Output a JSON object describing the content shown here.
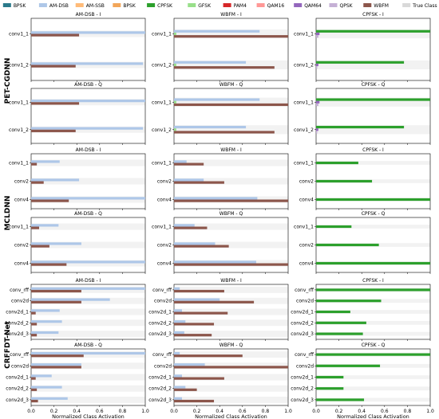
{
  "chart_data": {
    "type": "bar",
    "orientation": "horizontal",
    "xlabel": "Normalized Class Activation",
    "xlim": [
      0,
      1
    ],
    "xticks": [
      "0.0",
      "0.2",
      "0.4",
      "0.6",
      "0.8",
      "1.0"
    ],
    "legend_position": "top",
    "legend": [
      {
        "name": "BPSK",
        "color": "#2b7a8b"
      },
      {
        "name": "AM-DSB",
        "color": "#aec7e8"
      },
      {
        "name": "AM-SSB",
        "color": "#ffbb78"
      },
      {
        "name": "BPSK",
        "color": "#f2a65a"
      },
      {
        "name": "CPFSK",
        "color": "#2ca02c"
      },
      {
        "name": "GFSK",
        "color": "#98df8a"
      },
      {
        "name": "PAM4",
        "color": "#d62728"
      },
      {
        "name": "QAM16",
        "color": "#ff9896"
      },
      {
        "name": "QAM64",
        "color": "#9467bd"
      },
      {
        "name": "QPSK",
        "color": "#c5b0d5"
      },
      {
        "name": "WBFM",
        "color": "#8c564b"
      },
      {
        "name": "True Class",
        "color": "#d9d9d9"
      }
    ],
    "models": [
      {
        "name": "PET-CGDNN",
        "rows": [
          {
            "layers": [
              "conv1_1",
              "conv1_2"
            ],
            "panels": [
              {
                "title": "AM-DSB - I",
                "bars": [
                  [
                    {
                      "c": 1,
                      "v": 1.0
                    },
                    {
                      "c": 10,
                      "v": 0.42
                    }
                  ],
                  [
                    {
                      "c": 1,
                      "v": 0.98
                    },
                    {
                      "c": 10,
                      "v": 0.39
                    }
                  ]
                ]
              },
              {
                "title": "WBFM - I",
                "bars": [
                  [
                    {
                      "c": 1,
                      "v": 0.75
                    },
                    {
                      "c": 5,
                      "v": 0.02
                    },
                    {
                      "c": 10,
                      "v": 1.0
                    }
                  ],
                  [
                    {
                      "c": 1,
                      "v": 0.63
                    },
                    {
                      "c": 5,
                      "v": 0.02
                    },
                    {
                      "c": 10,
                      "v": 0.88
                    }
                  ]
                ]
              },
              {
                "title": "CPFSK - I",
                "bars": [
                  [
                    {
                      "c": 4,
                      "v": 1.0
                    },
                    {
                      "c": 8,
                      "v": 0.03
                    },
                    {
                      "c": 9,
                      "v": 0.02
                    }
                  ],
                  [
                    {
                      "c": 4,
                      "v": 0.77
                    },
                    {
                      "c": 8,
                      "v": 0.02
                    },
                    {
                      "c": 9,
                      "v": 0.01
                    }
                  ]
                ]
              }
            ]
          },
          {
            "layers": [
              "conv1_1",
              "conv1_2"
            ],
            "panels": [
              {
                "title": "AM-DSB - Q",
                "bars": [
                  [
                    {
                      "c": 1,
                      "v": 1.0
                    },
                    {
                      "c": 10,
                      "v": 0.42
                    }
                  ],
                  [
                    {
                      "c": 1,
                      "v": 0.98
                    },
                    {
                      "c": 10,
                      "v": 0.39
                    }
                  ]
                ]
              },
              {
                "title": "WBFM - Q",
                "bars": [
                  [
                    {
                      "c": 1,
                      "v": 0.75
                    },
                    {
                      "c": 5,
                      "v": 0.02
                    },
                    {
                      "c": 10,
                      "v": 1.0
                    }
                  ],
                  [
                    {
                      "c": 1,
                      "v": 0.63
                    },
                    {
                      "c": 5,
                      "v": 0.02
                    },
                    {
                      "c": 10,
                      "v": 0.88
                    }
                  ]
                ]
              },
              {
                "title": "CPFSK - Q",
                "bars": [
                  [
                    {
                      "c": 4,
                      "v": 1.0
                    },
                    {
                      "c": 8,
                      "v": 0.03
                    },
                    {
                      "c": 9,
                      "v": 0.02
                    }
                  ],
                  [
                    {
                      "c": 4,
                      "v": 0.77
                    },
                    {
                      "c": 8,
                      "v": 0.02
                    },
                    {
                      "c": 9,
                      "v": 0.01
                    }
                  ]
                ]
              }
            ]
          }
        ]
      },
      {
        "name": "MCLDNN",
        "rows": [
          {
            "layers": [
              "conv1_1",
              "conv2",
              "conv4"
            ],
            "panels": [
              {
                "title": "AM-DSB - I",
                "bars": [
                  [
                    {
                      "c": 1,
                      "v": 0.25
                    },
                    {
                      "c": 10,
                      "v": 0.05
                    }
                  ],
                  [
                    {
                      "c": 1,
                      "v": 0.42
                    },
                    {
                      "c": 10,
                      "v": 0.11
                    }
                  ],
                  [
                    {
                      "c": 1,
                      "v": 1.0
                    },
                    {
                      "c": 10,
                      "v": 0.33
                    }
                  ]
                ]
              },
              {
                "title": "WBFM - I",
                "bars": [
                  [
                    {
                      "c": 1,
                      "v": 0.11
                    },
                    {
                      "c": 10,
                      "v": 0.26
                    }
                  ],
                  [
                    {
                      "c": 1,
                      "v": 0.26
                    },
                    {
                      "c": 10,
                      "v": 0.44
                    }
                  ],
                  [
                    {
                      "c": 1,
                      "v": 0.73
                    },
                    {
                      "c": 10,
                      "v": 1.0
                    }
                  ]
                ]
              },
              {
                "title": "CPFSK - I",
                "bars": [
                  [
                    {
                      "c": 4,
                      "v": 0.37
                    }
                  ],
                  [
                    {
                      "c": 4,
                      "v": 0.49
                    }
                  ],
                  [
                    {
                      "c": 4,
                      "v": 1.0
                    }
                  ]
                ]
              }
            ]
          },
          {
            "layers": [
              "conv1_1",
              "conv2",
              "conv4"
            ],
            "panels": [
              {
                "title": "AM-DSB - Q",
                "bars": [
                  [
                    {
                      "c": 1,
                      "v": 0.24
                    },
                    {
                      "c": 10,
                      "v": 0.07
                    }
                  ],
                  [
                    {
                      "c": 1,
                      "v": 0.44
                    },
                    {
                      "c": 10,
                      "v": 0.16
                    }
                  ],
                  [
                    {
                      "c": 1,
                      "v": 1.0
                    },
                    {
                      "c": 10,
                      "v": 0.31
                    }
                  ]
                ]
              },
              {
                "title": "WBFM - Q",
                "bars": [
                  [
                    {
                      "c": 1,
                      "v": 0.18
                    },
                    {
                      "c": 10,
                      "v": 0.29
                    }
                  ],
                  [
                    {
                      "c": 1,
                      "v": 0.36
                    },
                    {
                      "c": 10,
                      "v": 0.48
                    }
                  ],
                  [
                    {
                      "c": 1,
                      "v": 0.72
                    },
                    {
                      "c": 10,
                      "v": 1.0
                    }
                  ]
                ]
              },
              {
                "title": "CPFSK - Q",
                "bars": [
                  [
                    {
                      "c": 4,
                      "v": 0.31
                    }
                  ],
                  [
                    {
                      "c": 4,
                      "v": 0.55
                    }
                  ],
                  [
                    {
                      "c": 4,
                      "v": 1.0
                    }
                  ]
                ]
              }
            ]
          }
        ]
      },
      {
        "name": "CRFFDT-Net",
        "rows": [
          {
            "layers": [
              "conv_rff",
              "conv2d",
              "conv2d_1",
              "conv2d_2",
              "conv2d_3"
            ],
            "panels": [
              {
                "title": "AM-DSB - I",
                "bars": [
                  [
                    {
                      "c": 1,
                      "v": 1.0
                    },
                    {
                      "c": 10,
                      "v": 0.44
                    }
                  ],
                  [
                    {
                      "c": 1,
                      "v": 0.69
                    },
                    {
                      "c": 10,
                      "v": 0.44
                    }
                  ],
                  [
                    {
                      "c": 1,
                      "v": 0.25
                    },
                    {
                      "c": 10,
                      "v": 0.04
                    }
                  ],
                  [
                    {
                      "c": 1,
                      "v": 0.27
                    },
                    {
                      "c": 10,
                      "v": 0.05
                    }
                  ],
                  [
                    {
                      "c": 1,
                      "v": 0.24
                    },
                    {
                      "c": 10,
                      "v": 0.05
                    }
                  ]
                ]
              },
              {
                "title": "WBFM - I",
                "bars": [
                  [
                    {
                      "c": 1,
                      "v": 0.05
                    },
                    {
                      "c": 10,
                      "v": 0.44
                    }
                  ],
                  [
                    {
                      "c": 1,
                      "v": 0.4
                    },
                    {
                      "c": 10,
                      "v": 0.7
                    }
                  ],
                  [
                    {
                      "c": 1,
                      "v": 0.07
                    },
                    {
                      "c": 10,
                      "v": 0.47
                    }
                  ],
                  [
                    {
                      "c": 1,
                      "v": 0.1
                    },
                    {
                      "c": 10,
                      "v": 0.35
                    }
                  ],
                  [
                    {
                      "c": 1,
                      "v": 0.09
                    },
                    {
                      "c": 10,
                      "v": 0.33
                    }
                  ]
                ]
              },
              {
                "title": "CPFSK - I",
                "bars": [
                  [
                    {
                      "c": 4,
                      "v": 1.0
                    }
                  ],
                  [
                    {
                      "c": 4,
                      "v": 0.57
                    }
                  ],
                  [
                    {
                      "c": 4,
                      "v": 0.3
                    }
                  ],
                  [
                    {
                      "c": 4,
                      "v": 0.44
                    }
                  ],
                  [
                    {
                      "c": 4,
                      "v": 0.41
                    }
                  ]
                ]
              }
            ]
          },
          {
            "layers": [
              "conv_rff",
              "conv2d",
              "conv2d_1",
              "conv2d_2",
              "conv2d_3"
            ],
            "panels": [
              {
                "title": "AM-DSB - Q",
                "bars": [
                  [
                    {
                      "c": 1,
                      "v": 1.0
                    },
                    {
                      "c": 10,
                      "v": 0.46
                    }
                  ],
                  [
                    {
                      "c": 1,
                      "v": 0.44
                    },
                    {
                      "c": 10,
                      "v": 0.44
                    }
                  ],
                  [
                    {
                      "c": 1,
                      "v": 0.18
                    },
                    {
                      "c": 10,
                      "v": 0.04
                    }
                  ],
                  [
                    {
                      "c": 1,
                      "v": 0.27
                    },
                    {
                      "c": 10,
                      "v": 0.05
                    }
                  ],
                  [
                    {
                      "c": 1,
                      "v": 0.32
                    },
                    {
                      "c": 10,
                      "v": 0.06
                    }
                  ]
                ]
              },
              {
                "title": "WBFM - Q",
                "bars": [
                  [
                    {
                      "c": 1,
                      "v": 0.05
                    },
                    {
                      "c": 10,
                      "v": 0.6
                    }
                  ],
                  [
                    {
                      "c": 1,
                      "v": 0.27
                    },
                    {
                      "c": 10,
                      "v": 1.0
                    }
                  ],
                  [
                    {
                      "c": 1,
                      "v": 0.07
                    },
                    {
                      "c": 10,
                      "v": 0.44
                    }
                  ],
                  [
                    {
                      "c": 1,
                      "v": 0.1
                    },
                    {
                      "c": 10,
                      "v": 0.2
                    }
                  ],
                  [
                    {
                      "c": 1,
                      "v": 0.07
                    },
                    {
                      "c": 10,
                      "v": 0.35
                    }
                  ]
                ]
              },
              {
                "title": "CPFSK - Q",
                "bars": [
                  [
                    {
                      "c": 4,
                      "v": 1.0
                    }
                  ],
                  [
                    {
                      "c": 4,
                      "v": 0.56
                    }
                  ],
                  [
                    {
                      "c": 4,
                      "v": 0.24
                    }
                  ],
                  [
                    {
                      "c": 4,
                      "v": 0.24
                    }
                  ],
                  [
                    {
                      "c": 4,
                      "v": 0.42
                    }
                  ]
                ]
              }
            ]
          }
        ]
      }
    ]
  }
}
